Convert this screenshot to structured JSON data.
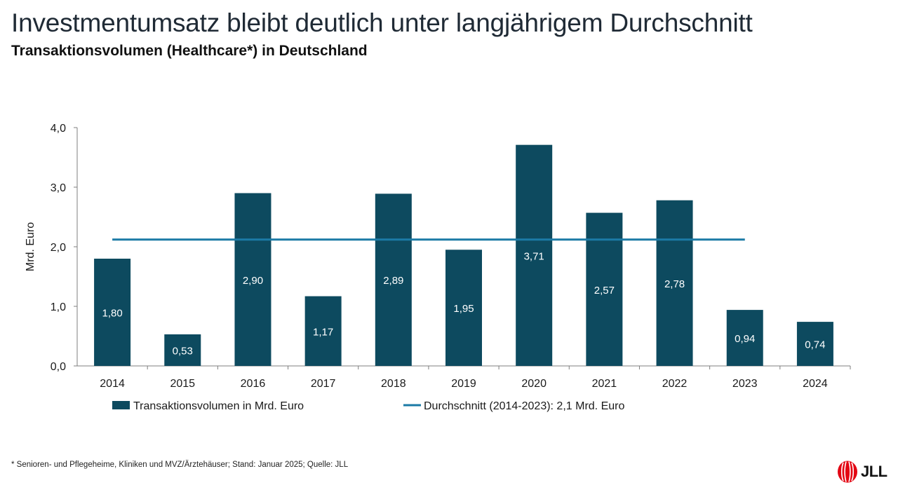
{
  "page": {
    "title": "Investmentumsatz bleibt deutlich unter langjährigem Durchschnitt",
    "subtitle": "Transaktionsvolumen (Healthcare*) in Deutschland",
    "footnote": "* Senioren- und Pflegeheime, Kliniken und MVZ/Ärztehäuser; Stand: Januar 2025; Quelle: JLL",
    "logo_text": "JLL"
  },
  "colors": {
    "bar": "#0d4a5f",
    "average_line": "#1b7aa6",
    "bar_label": "#ffffff",
    "axis": "#7f7f7f",
    "logo_red": "#e30613"
  },
  "chart_data": {
    "type": "bar",
    "categories": [
      "2014",
      "2015",
      "2016",
      "2017",
      "2018",
      "2019",
      "2020",
      "2021",
      "2022",
      "2023",
      "2024"
    ],
    "series": [
      {
        "name": "Transaktionsvolumen in Mrd. Euro",
        "values": [
          1.8,
          0.53,
          2.9,
          1.17,
          2.89,
          1.95,
          3.71,
          2.57,
          2.78,
          0.94,
          0.74
        ],
        "labels": [
          "1,80",
          "0,53",
          "2,90",
          "1,17",
          "2,89",
          "1,95",
          "3,71",
          "2,57",
          "2,78",
          "0,94",
          "0,74"
        ]
      },
      {
        "name": "Durchschnitt (2014-2023): 2,1 Mrd. Euro",
        "type": "line",
        "value": 2.12,
        "from": "2014",
        "to": "2023"
      }
    ],
    "xlabel": "",
    "ylabel": "Mrd. Euro",
    "ylim": [
      0,
      4.0
    ],
    "yticks": [
      "0,0",
      "1,0",
      "2,0",
      "3,0",
      "4,0"
    ],
    "grid": false,
    "legend_position": "bottom"
  }
}
